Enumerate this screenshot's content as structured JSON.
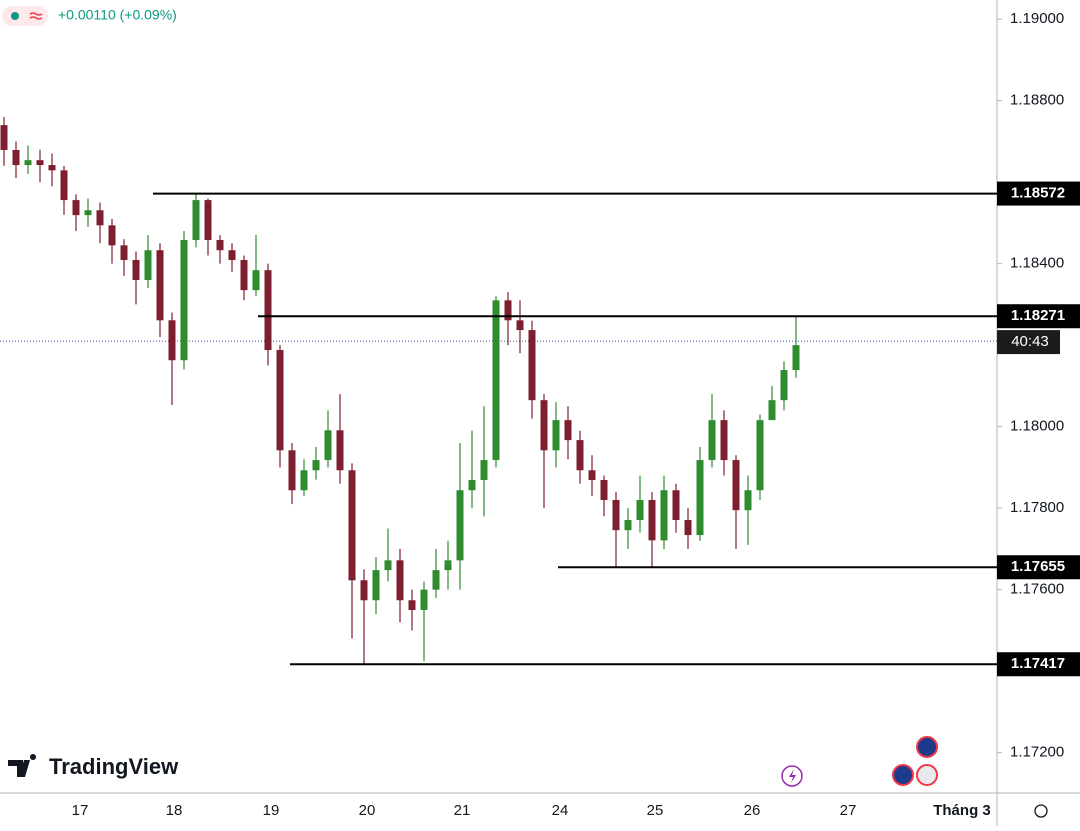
{
  "chart_data": {
    "type": "candlestick",
    "change": "+0.00110 (+0.09%)",
    "brand": "TradingView",
    "up_color": "#2e8b2e",
    "down_color": "#7d1f2e",
    "ylim": [
      1.17101,
      1.19047
    ],
    "yticks": [
      {
        "value": 1.19,
        "label": "1.19000"
      },
      {
        "value": 1.188,
        "label": "1.18800"
      },
      {
        "value": 1.184,
        "label": "1.18400"
      },
      {
        "value": 1.18,
        "label": "1.18000"
      },
      {
        "value": 1.178,
        "label": "1.17800"
      },
      {
        "value": 1.176,
        "label": "1.17600"
      },
      {
        "value": 1.172,
        "label": "1.17200"
      }
    ],
    "x_labels": [
      "17",
      "18",
      "19",
      "20",
      "21",
      "24",
      "25",
      "26",
      "27",
      "Tháng 3"
    ],
    "levels": [
      1.18572,
      1.18271,
      1.17655,
      1.17417
    ],
    "current_price": 1.1821,
    "countdown": "40:43",
    "candles": [
      [
        1.1874,
        1.1876,
        1.1864,
        1.18679
      ],
      [
        1.18679,
        1.187,
        1.1861,
        1.18642
      ],
      [
        1.18642,
        1.1869,
        1.1862,
        1.18654
      ],
      [
        1.18654,
        1.1868,
        1.186,
        1.18642
      ],
      [
        1.18642,
        1.1867,
        1.1859,
        1.18629
      ],
      [
        1.18629,
        1.1864,
        1.1852,
        1.18556
      ],
      [
        1.18556,
        1.1857,
        1.1848,
        1.18519
      ],
      [
        1.18519,
        1.1856,
        1.1849,
        1.18531
      ],
      [
        1.18531,
        1.1855,
        1.1845,
        1.18494
      ],
      [
        1.18494,
        1.1851,
        1.184,
        1.18445
      ],
      [
        1.18445,
        1.1846,
        1.1837,
        1.18409
      ],
      [
        1.18409,
        1.1843,
        1.183,
        1.1836
      ],
      [
        1.1836,
        1.1847,
        1.1834,
        1.18433
      ],
      [
        1.18433,
        1.1845,
        1.1822,
        1.18261
      ],
      [
        1.18261,
        1.1828,
        1.18053,
        1.18163
      ],
      [
        1.18163,
        1.1848,
        1.1814,
        1.18458
      ],
      [
        1.18458,
        1.18572,
        1.1844,
        1.18556
      ],
      [
        1.18556,
        1.1856,
        1.1842,
        1.18458
      ],
      [
        1.18458,
        1.1847,
        1.184,
        1.18433
      ],
      [
        1.18433,
        1.1845,
        1.1838,
        1.18409
      ],
      [
        1.18409,
        1.1842,
        1.1831,
        1.18335
      ],
      [
        1.18335,
        1.1847,
        1.1832,
        1.18384
      ],
      [
        1.18384,
        1.184,
        1.1815,
        1.18188
      ],
      [
        1.18188,
        1.182,
        1.179,
        1.17942
      ],
      [
        1.17942,
        1.1796,
        1.1781,
        1.17844
      ],
      [
        1.17844,
        1.1792,
        1.1783,
        1.17893
      ],
      [
        1.17893,
        1.1795,
        1.1787,
        1.17918
      ],
      [
        1.17918,
        1.1804,
        1.179,
        1.17991
      ],
      [
        1.17991,
        1.1808,
        1.1786,
        1.17893
      ],
      [
        1.17893,
        1.1791,
        1.1748,
        1.17623
      ],
      [
        1.17623,
        1.1765,
        1.17417,
        1.17574
      ],
      [
        1.17574,
        1.1768,
        1.1754,
        1.17648
      ],
      [
        1.17648,
        1.1775,
        1.1762,
        1.17672
      ],
      [
        1.17672,
        1.177,
        1.1752,
        1.17574
      ],
      [
        1.17574,
        1.176,
        1.175,
        1.1755
      ],
      [
        1.1755,
        1.1762,
        1.17425,
        1.176
      ],
      [
        1.176,
        1.177,
        1.1758,
        1.17648
      ],
      [
        1.17648,
        1.1772,
        1.176,
        1.17672
      ],
      [
        1.17672,
        1.1796,
        1.176,
        1.17844
      ],
      [
        1.17844,
        1.1799,
        1.178,
        1.17869
      ],
      [
        1.17869,
        1.1805,
        1.1778,
        1.17918
      ],
      [
        1.17918,
        1.1832,
        1.179,
        1.1831
      ],
      [
        1.1831,
        1.1833,
        1.182,
        1.18261
      ],
      [
        1.18261,
        1.1831,
        1.1818,
        1.18237
      ],
      [
        1.18237,
        1.1826,
        1.1802,
        1.18065
      ],
      [
        1.18065,
        1.1808,
        1.178,
        1.17942
      ],
      [
        1.17942,
        1.1806,
        1.179,
        1.18016
      ],
      [
        1.18016,
        1.1805,
        1.1792,
        1.17967
      ],
      [
        1.17967,
        1.1799,
        1.1786,
        1.17893
      ],
      [
        1.17893,
        1.1793,
        1.1783,
        1.17869
      ],
      [
        1.17869,
        1.1788,
        1.1778,
        1.1782
      ],
      [
        1.1782,
        1.1784,
        1.17655,
        1.17746
      ],
      [
        1.17746,
        1.178,
        1.177,
        1.17771
      ],
      [
        1.17771,
        1.1788,
        1.1774,
        1.1782
      ],
      [
        1.1782,
        1.1784,
        1.17655,
        1.17721
      ],
      [
        1.17721,
        1.1788,
        1.177,
        1.17844
      ],
      [
        1.17844,
        1.1786,
        1.1774,
        1.17771
      ],
      [
        1.17771,
        1.178,
        1.177,
        1.17734
      ],
      [
        1.17734,
        1.1795,
        1.1772,
        1.17918
      ],
      [
        1.17918,
        1.1808,
        1.179,
        1.18016
      ],
      [
        1.18016,
        1.1804,
        1.1788,
        1.17918
      ],
      [
        1.17918,
        1.1793,
        1.177,
        1.17795
      ],
      [
        1.17795,
        1.1788,
        1.1771,
        1.17844
      ],
      [
        1.17844,
        1.1803,
        1.1782,
        1.18016
      ],
      [
        1.18016,
        1.181,
        1.1803,
        1.18065
      ],
      [
        1.18065,
        1.1816,
        1.1804,
        1.18139
      ],
      [
        1.18139,
        1.18271,
        1.1812,
        1.182
      ]
    ]
  }
}
